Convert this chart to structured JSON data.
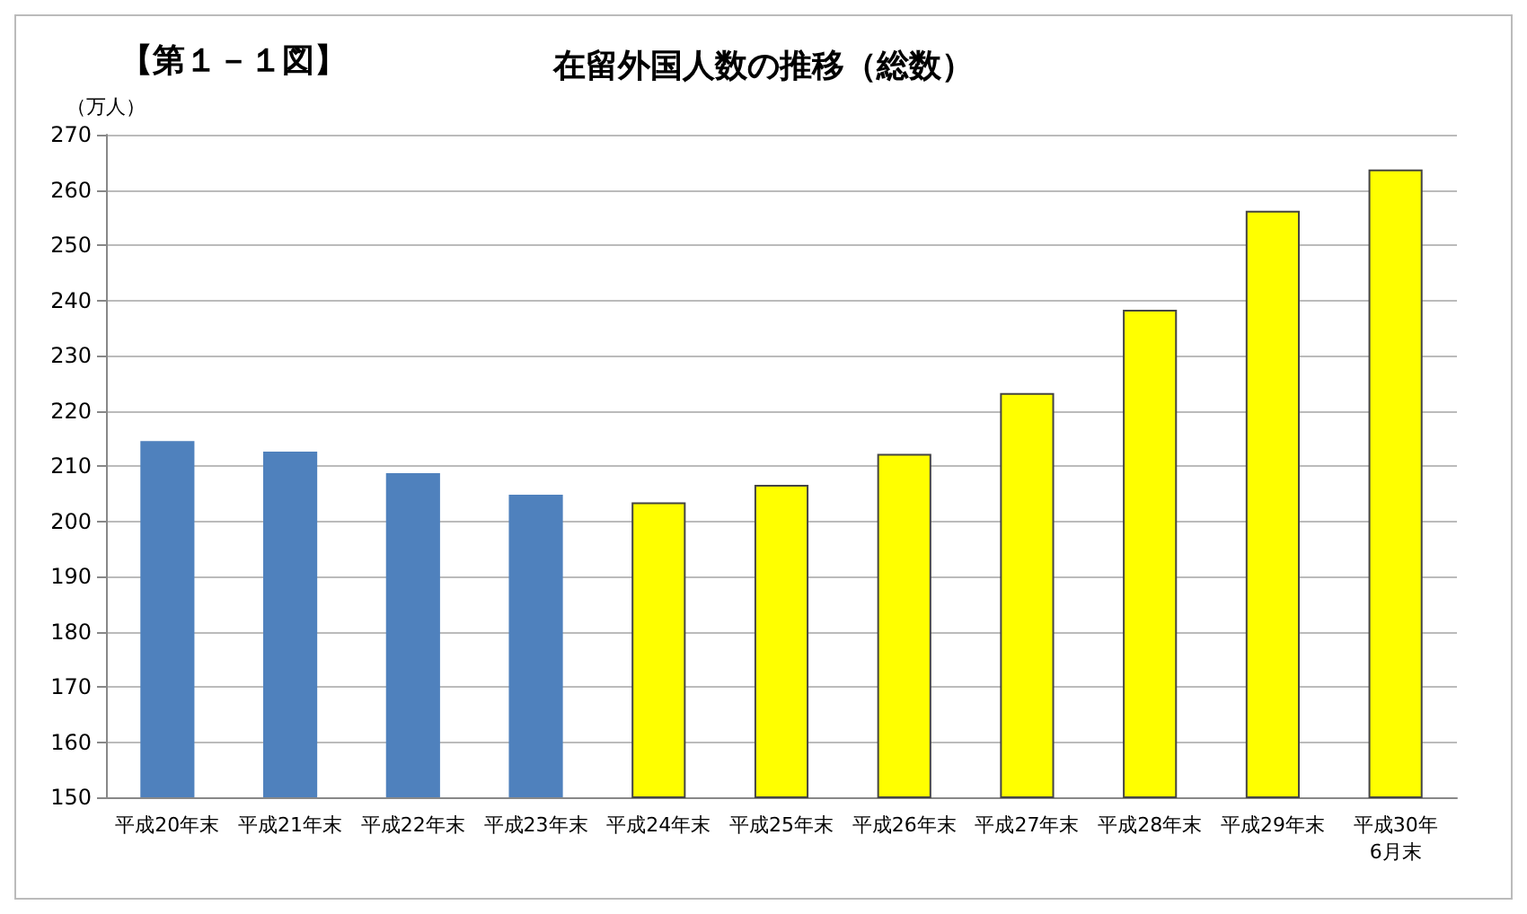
{
  "chart_data": {
    "type": "bar",
    "title": "在留外国人数の推移（総数）",
    "ylabel": "（万人）",
    "annotations": [
      "【第１－１図】"
    ],
    "categories": [
      "平成20年末",
      "平成21年末",
      "平成22年末",
      "平成23年末",
      "平成24年末",
      "平成25年末",
      "平成26年末",
      "平成27年末",
      "平成28年末",
      "平成29年末",
      "平成30年\n6月末"
    ],
    "values": [
      214.5,
      212.6,
      208.7,
      204.8,
      203.4,
      206.6,
      212.2,
      223.2,
      238.3,
      256.2,
      263.7
    ],
    "colors": [
      "#4f81bd",
      "#4f81bd",
      "#4f81bd",
      "#4f81bd",
      "#ffff00",
      "#ffff00",
      "#ffff00",
      "#ffff00",
      "#ffff00",
      "#ffff00",
      "#ffff00"
    ],
    "ylim": [
      150,
      270
    ],
    "yticks": [
      150,
      160,
      170,
      180,
      190,
      200,
      210,
      220,
      230,
      240,
      250,
      260,
      270
    ],
    "grid": true
  }
}
